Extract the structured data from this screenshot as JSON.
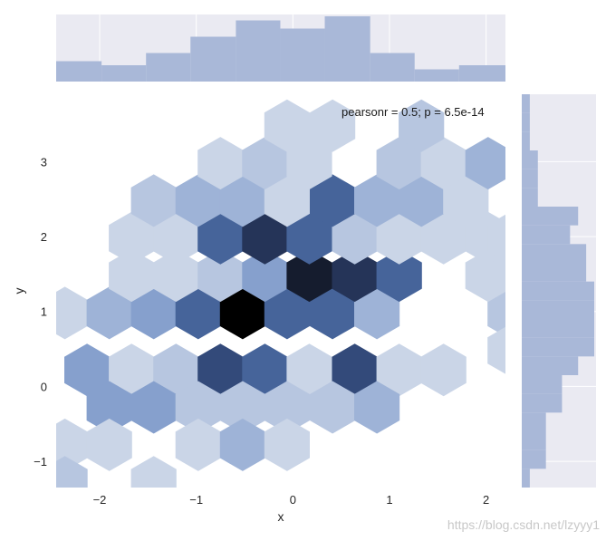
{
  "chart_data": {
    "type": "hexbin",
    "xlabel": "x",
    "ylabel": "y",
    "xlim": [
      -2.45,
      2.2
    ],
    "ylim": [
      -1.35,
      3.9
    ],
    "xticks": [
      "−2",
      "−1",
      "0",
      "1",
      "2"
    ],
    "xtick_values": [
      -2,
      -1,
      0,
      1,
      2
    ],
    "yticks": [
      "−1",
      "0",
      "1",
      "2",
      "3"
    ],
    "ytick_values": [
      -1,
      0,
      1,
      2,
      3
    ],
    "annotation": "pearsonr = 0.5; p = 6.5e-14",
    "grid": true,
    "hex_color_low": "#dde3ee",
    "hex_color_high": "#000000",
    "hexbins": [
      {
        "x": -2.36,
        "y": 0.98,
        "count": 1
      },
      {
        "x": -1.9,
        "y": 0.98,
        "count": 3
      },
      {
        "x": -1.44,
        "y": 0.98,
        "count": 4
      },
      {
        "x": -0.98,
        "y": 0.98,
        "count": 6
      },
      {
        "x": -0.52,
        "y": 0.98,
        "count": 10
      },
      {
        "x": -0.06,
        "y": 0.98,
        "count": 6
      },
      {
        "x": 0.41,
        "y": 0.98,
        "count": 6
      },
      {
        "x": 0.87,
        "y": 0.98,
        "count": 3
      },
      {
        "x": 2.25,
        "y": 0.98,
        "count": 2
      },
      {
        "x": -2.13,
        "y": 0.22,
        "count": 4
      },
      {
        "x": -1.67,
        "y": 0.22,
        "count": 1
      },
      {
        "x": -1.21,
        "y": 0.22,
        "count": 2
      },
      {
        "x": -0.75,
        "y": 0.22,
        "count": 7
      },
      {
        "x": -0.29,
        "y": 0.22,
        "count": 6
      },
      {
        "x": 0.17,
        "y": 0.22,
        "count": 1
      },
      {
        "x": 0.64,
        "y": 0.22,
        "count": 7
      },
      {
        "x": 1.1,
        "y": 0.22,
        "count": 1
      },
      {
        "x": 1.56,
        "y": 0.22,
        "count": 1
      },
      {
        "x": -1.9,
        "y": -0.28,
        "count": 4
      },
      {
        "x": -1.44,
        "y": -0.28,
        "count": 4
      },
      {
        "x": -0.98,
        "y": -0.28,
        "count": 2
      },
      {
        "x": -0.52,
        "y": -0.28,
        "count": 2
      },
      {
        "x": -0.06,
        "y": -0.28,
        "count": 2
      },
      {
        "x": 0.41,
        "y": -0.28,
        "count": 2
      },
      {
        "x": 0.87,
        "y": -0.28,
        "count": 3
      },
      {
        "x": -2.36,
        "y": -0.78,
        "count": 1
      },
      {
        "x": -1.9,
        "y": -0.78,
        "count": 1
      },
      {
        "x": -0.98,
        "y": -0.78,
        "count": 1
      },
      {
        "x": -0.52,
        "y": -0.78,
        "count": 3
      },
      {
        "x": -0.06,
        "y": -0.78,
        "count": 1
      },
      {
        "x": -2.36,
        "y": -1.28,
        "count": 2
      },
      {
        "x": -1.44,
        "y": -1.28,
        "count": 1
      },
      {
        "x": -1.21,
        "y": 1.48,
        "count": 1
      },
      {
        "x": -0.75,
        "y": 1.48,
        "count": 2
      },
      {
        "x": -0.29,
        "y": 1.48,
        "count": 4
      },
      {
        "x": 0.17,
        "y": 1.48,
        "count": 9
      },
      {
        "x": 0.64,
        "y": 1.48,
        "count": 8
      },
      {
        "x": 1.1,
        "y": 1.48,
        "count": 6
      },
      {
        "x": 1.56,
        "y": 1.48,
        "count": 0
      },
      {
        "x": 2.02,
        "y": 1.48,
        "count": 1
      },
      {
        "x": -1.67,
        "y": 1.48,
        "count": 1
      },
      {
        "x": -1.67,
        "y": 1.98,
        "count": 1
      },
      {
        "x": -1.21,
        "y": 1.98,
        "count": 1
      },
      {
        "x": -0.75,
        "y": 1.98,
        "count": 6
      },
      {
        "x": -0.29,
        "y": 1.98,
        "count": 8
      },
      {
        "x": 0.17,
        "y": 1.98,
        "count": 6
      },
      {
        "x": 0.64,
        "y": 1.98,
        "count": 2
      },
      {
        "x": 1.1,
        "y": 1.98,
        "count": 1
      },
      {
        "x": 1.56,
        "y": 1.98,
        "count": 1
      },
      {
        "x": 2.02,
        "y": 1.98,
        "count": 1
      },
      {
        "x": -1.44,
        "y": 2.48,
        "count": 2
      },
      {
        "x": -0.98,
        "y": 2.48,
        "count": 3
      },
      {
        "x": -0.52,
        "y": 2.48,
        "count": 3
      },
      {
        "x": -0.06,
        "y": 2.48,
        "count": 1
      },
      {
        "x": 0.41,
        "y": 2.48,
        "count": 6
      },
      {
        "x": 0.87,
        "y": 2.48,
        "count": 3
      },
      {
        "x": 1.33,
        "y": 2.48,
        "count": 3
      },
      {
        "x": 1.79,
        "y": 2.48,
        "count": 1
      },
      {
        "x": -0.75,
        "y": 2.98,
        "count": 1
      },
      {
        "x": -0.29,
        "y": 2.98,
        "count": 2
      },
      {
        "x": 0.17,
        "y": 2.98,
        "count": 1
      },
      {
        "x": 1.1,
        "y": 2.98,
        "count": 2
      },
      {
        "x": 1.56,
        "y": 2.98,
        "count": 1
      },
      {
        "x": 2.02,
        "y": 2.98,
        "count": 3
      },
      {
        "x": -0.06,
        "y": 3.48,
        "count": 1
      },
      {
        "x": 0.41,
        "y": 3.48,
        "count": 1
      },
      {
        "x": 1.33,
        "y": 3.48,
        "count": 2
      },
      {
        "x": 2.25,
        "y": 0.48,
        "count": 1
      },
      {
        "x": 2.25,
        "y": 1.98,
        "count": 1
      }
    ],
    "marginal_x": {
      "bin_edges": [
        -2.45,
        -1.98,
        -1.52,
        -1.06,
        -0.59,
        -0.13,
        0.33,
        0.8,
        1.26,
        1.72,
        2.2
      ],
      "counts": [
        5,
        4,
        7,
        11,
        15,
        13,
        16,
        7,
        3,
        4
      ]
    },
    "marginal_y": {
      "bin_edges": [
        -1.35,
        -1.1,
        -0.85,
        -0.6,
        -0.35,
        -0.1,
        0.15,
        0.4,
        0.65,
        0.9,
        1.15,
        1.4,
        1.65,
        1.9,
        2.15,
        2.4,
        2.65,
        2.9,
        3.15,
        3.4,
        3.65,
        3.9
      ],
      "counts": [
        1,
        3,
        3,
        3,
        5,
        5,
        7,
        9,
        9,
        9,
        9,
        8,
        8,
        6,
        7,
        2,
        2,
        2,
        1,
        1,
        1
      ]
    }
  },
  "watermark": "https://blog.csdn.net/lzyyy1"
}
